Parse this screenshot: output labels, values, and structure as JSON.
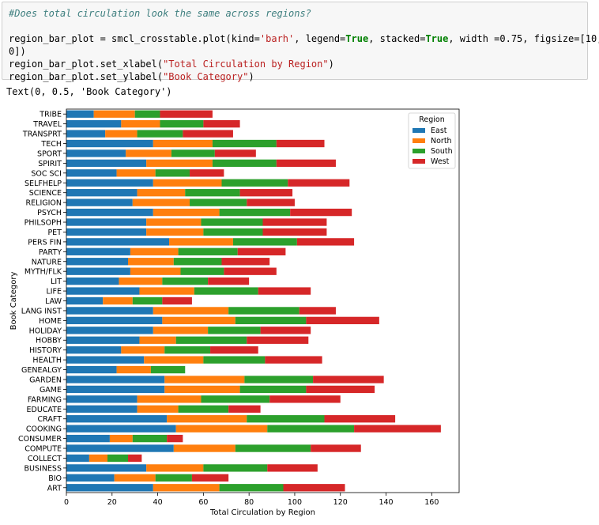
{
  "notebook": {
    "code_lines": [
      {
        "parts": [
          {
            "t": "#Does total circulation look the same across regions?",
            "c": "cm"
          }
        ]
      },
      {
        "parts": []
      },
      {
        "parts": [
          {
            "t": "region_bar_plot = smcl_crosstable.plot(kind=",
            "c": ""
          },
          {
            "t": "'barh'",
            "c": "st"
          },
          {
            "t": ", legend=",
            "c": ""
          },
          {
            "t": "True",
            "c": "kw"
          },
          {
            "t": ", stacked=",
            "c": ""
          },
          {
            "t": "True",
            "c": "kw"
          },
          {
            "t": ", width =0.75, figsize=[10,1",
            "c": ""
          }
        ]
      },
      {
        "parts": [
          {
            "t": "0])",
            "c": ""
          }
        ]
      },
      {
        "parts": [
          {
            "t": "region_bar_plot.set_xlabel(",
            "c": ""
          },
          {
            "t": "\"Total Circulation by Region\"",
            "c": "st"
          },
          {
            "t": ")",
            "c": ""
          }
        ]
      },
      {
        "parts": [
          {
            "t": "region_bar_plot.set_ylabel(",
            "c": ""
          },
          {
            "t": "\"Book Category\"",
            "c": "st"
          },
          {
            "t": ")",
            "c": ""
          }
        ]
      }
    ],
    "output_text": "Text(0, 0.5, 'Book Category')"
  },
  "chart_data": {
    "type": "bar",
    "orientation": "horizontal",
    "stacked": true,
    "title": "",
    "xlabel": "Total Circulation by Region",
    "ylabel": "Book Category",
    "xlim": [
      0,
      172
    ],
    "xticks": [
      0,
      20,
      40,
      60,
      80,
      100,
      120,
      140,
      160
    ],
    "legend_title": "Region",
    "legend_position": "top-right",
    "categories": [
      "ART",
      "BIO",
      "BUSINESS",
      "COLLECT",
      "COMPUTE",
      "CONSUMER",
      "COOKING",
      "CRAFT",
      "EDUCATE",
      "FARMING",
      "GAME",
      "GARDEN",
      "GENEALGY",
      "HEALTH",
      "HISTORY",
      "HOBBY",
      "HOLIDAY",
      "HOME",
      "LANG INST",
      "LAW",
      "LIFE",
      "LIT",
      "MYTH/FLK",
      "NATURE",
      "PARTY",
      "PERS FIN",
      "PET",
      "PHILSOPH",
      "PSYCH",
      "RELIGION",
      "SCIENCE",
      "SELFHELP",
      "SOC SCI",
      "SPIRIT",
      "SPORT",
      "TECH",
      "TRANSPRT",
      "TRAVEL",
      "TRIBE"
    ],
    "series": [
      {
        "name": "East",
        "color": "#1f77b4",
        "values": [
          38,
          21,
          35,
          10,
          47,
          19,
          48,
          44,
          31,
          31,
          43,
          43,
          22,
          34,
          24,
          32,
          38,
          42,
          38,
          16,
          32,
          23,
          28,
          27,
          28,
          45,
          35,
          35,
          38,
          29,
          31,
          38,
          22,
          35,
          26,
          38,
          17,
          24,
          12
        ]
      },
      {
        "name": "North",
        "color": "#ff7f0e",
        "values": [
          29,
          18,
          25,
          8,
          27,
          10,
          40,
          35,
          18,
          28,
          33,
          35,
          15,
          26,
          19,
          16,
          24,
          32,
          33,
          13,
          24,
          19,
          22,
          20,
          21,
          28,
          25,
          24,
          29,
          25,
          21,
          30,
          17,
          29,
          20,
          26,
          14,
          17,
          18
        ]
      },
      {
        "name": "South",
        "color": "#2ca02c",
        "values": [
          28,
          16,
          28,
          9,
          33,
          15,
          38,
          34,
          22,
          30,
          29,
          30,
          15,
          27,
          20,
          31,
          23,
          31,
          31,
          13,
          28,
          20,
          19,
          21,
          26,
          28,
          26,
          27,
          31,
          25,
          24,
          29,
          15,
          28,
          19,
          28,
          20,
          19,
          11
        ]
      },
      {
        "name": "West",
        "color": "#d62728",
        "values": [
          27,
          16,
          22,
          6,
          22,
          7,
          38,
          31,
          14,
          31,
          30,
          31,
          0,
          25,
          21,
          27,
          22,
          32,
          16,
          13,
          23,
          18,
          23,
          21,
          21,
          25,
          28,
          28,
          27,
          21,
          23,
          27,
          15,
          26,
          18,
          21,
          22,
          16,
          23
        ]
      }
    ]
  }
}
